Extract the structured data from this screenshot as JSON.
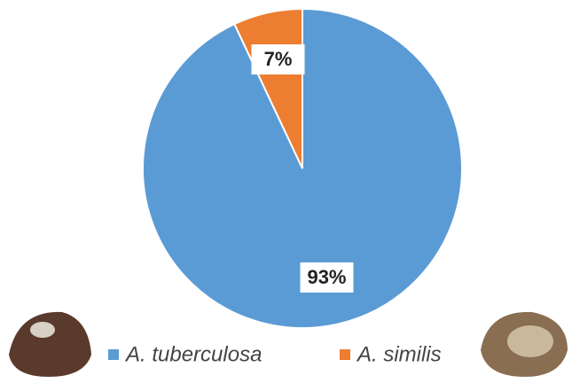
{
  "chart_data": {
    "type": "pie",
    "categories": [
      "A. tuberculosa",
      "A. similis"
    ],
    "values": [
      93,
      7
    ],
    "value_labels": [
      "93%",
      "7%"
    ],
    "colors": [
      "#5b9bd5",
      "#ed7d31"
    ]
  }
}
